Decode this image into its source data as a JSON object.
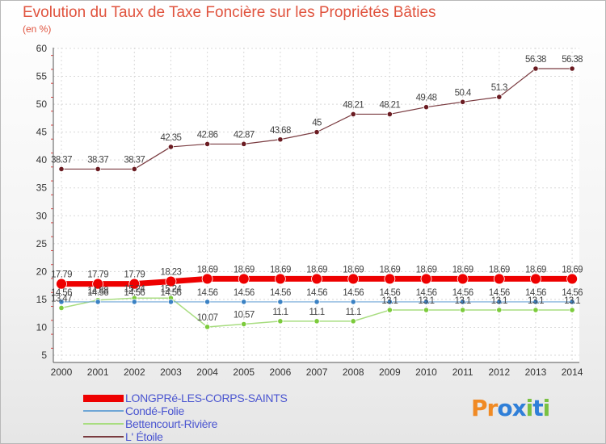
{
  "title": "Evolution du Taux de Taxe Foncière sur les Propriétés Bâties",
  "subtitle": "(en %)",
  "logo": {
    "letters": [
      "P",
      "r",
      "o",
      "x",
      "i",
      "t",
      "i"
    ],
    "colors": [
      "#f08a24",
      "#f08a24",
      "#2f7fd8",
      "#2f7fd8",
      "#79c142",
      "#2f7fd8",
      "#79c142"
    ]
  },
  "chart_data": {
    "type": "line",
    "x": [
      2000,
      2001,
      2002,
      2003,
      2004,
      2005,
      2006,
      2007,
      2008,
      2009,
      2010,
      2011,
      2012,
      2013,
      2014
    ],
    "ylim": [
      5,
      60
    ],
    "yticks": [
      5,
      10,
      15,
      20,
      25,
      30,
      35,
      40,
      45,
      50,
      55,
      60
    ],
    "grid": true,
    "series": [
      {
        "name": "L' Étoile",
        "color": "#6b1c22",
        "line": "#7a3b40",
        "width": 1.2,
        "point_r": 3.2,
        "values": [
          38.37,
          38.37,
          38.37,
          42.35,
          42.86,
          42.87,
          43.68,
          45,
          48.21,
          48.21,
          49.48,
          50.4,
          51.3,
          56.38,
          56.38
        ],
        "labels": [
          "38.37",
          "38.37",
          "38.37",
          "42.35",
          "42.86",
          "42.87",
          "43.68",
          "45",
          "48.21",
          "48.21",
          "49.48",
          "50.4",
          "51.3",
          "56.38",
          "56.38"
        ]
      },
      {
        "name": "Bettencourt-Rivière",
        "color": "#7ccb3c",
        "line": "#a8dd80",
        "width": 1.5,
        "point_r": 3.2,
        "values": [
          13.47,
          14.88,
          15.24,
          15.24,
          10.07,
          10.57,
          11.1,
          11.1,
          11.1,
          13.1,
          13.1,
          13.1,
          13.1,
          13.1,
          13.1
        ],
        "labels": [
          "13.47",
          "14.88",
          "15.24",
          "15.24",
          "10.07",
          "10.57",
          "11.1",
          "11.1",
          "11.1",
          "13.1",
          "13.1",
          "13.1",
          "13.1",
          "13.1",
          "13.1"
        ]
      },
      {
        "name": "Condé-Folie",
        "color": "#3b82c4",
        "line": "#6fa6d6",
        "width": 1.2,
        "point_r": 3.2,
        "values": [
          14.56,
          14.56,
          14.56,
          14.56,
          14.56,
          14.56,
          14.56,
          14.56,
          14.56,
          14.56,
          14.56,
          14.56,
          14.56,
          14.56,
          14.56
        ],
        "labels": [
          "14.56",
          "14.56",
          "14.56",
          "14.56",
          "14.56",
          "14.56",
          "14.56",
          "14.56",
          "14.56",
          "14.56",
          "14.56",
          "14.56",
          "14.56",
          "14.56",
          "14.56"
        ]
      },
      {
        "name": "LONGPRé-LES-CORPS-SAINTS",
        "color": "#ee0000",
        "line": "#ee0000",
        "width": 7,
        "point_r": 6.5,
        "values": [
          17.79,
          17.79,
          17.79,
          18.23,
          18.69,
          18.69,
          18.69,
          18.69,
          18.69,
          18.69,
          18.69,
          18.69,
          18.69,
          18.69,
          18.69
        ],
        "labels": [
          "17.79",
          "17.79",
          "17.79",
          "18.23",
          "18.69",
          "18.69",
          "18.69",
          "18.69",
          "18.69",
          "18.69",
          "18.69",
          "18.69",
          "18.69",
          "18.69",
          "18.69"
        ]
      }
    ],
    "legend_order": [
      3,
      2,
      1,
      0
    ]
  }
}
